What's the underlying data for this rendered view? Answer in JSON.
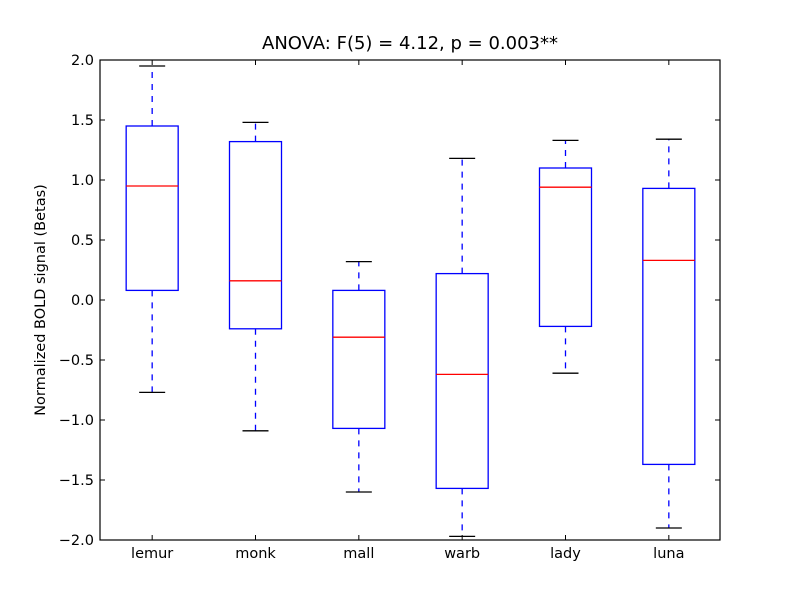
{
  "chart_data": {
    "type": "boxplot",
    "title": "ANOVA: F(5) = 4.12, p = 0.003**",
    "xlabel": "",
    "ylabel": "Normalized BOLD signal (Betas)",
    "ylim": [
      -2.0,
      2.0
    ],
    "yticks": [
      "2.0",
      "1.5",
      "1.0",
      "0.5",
      "0.0",
      "−0.5",
      "−1.0",
      "−1.5",
      "−2.0"
    ],
    "ytick_values": [
      2.0,
      1.5,
      1.0,
      0.5,
      0.0,
      -0.5,
      -1.0,
      -1.5,
      -2.0
    ],
    "grid": false,
    "categories": [
      "lemur",
      "monk",
      "mall",
      "warb",
      "lady",
      "luna"
    ],
    "boxes": [
      {
        "name": "lemur",
        "whisker_high": 1.95,
        "q3": 1.45,
        "median": 0.95,
        "q1": 0.08,
        "whisker_low": -0.77
      },
      {
        "name": "monk",
        "whisker_high": 1.48,
        "q3": 1.32,
        "median": 0.16,
        "q1": -0.24,
        "whisker_low": -1.09
      },
      {
        "name": "mall",
        "whisker_high": 0.32,
        "q3": 0.08,
        "median": -0.31,
        "q1": -1.07,
        "whisker_low": -1.6
      },
      {
        "name": "warb",
        "whisker_high": 1.18,
        "q3": 0.22,
        "median": -0.62,
        "q1": -1.57,
        "whisker_low": -1.97
      },
      {
        "name": "lady",
        "whisker_high": 1.33,
        "q3": 1.1,
        "median": 0.94,
        "q1": -0.22,
        "whisker_low": -0.61
      },
      {
        "name": "luna",
        "whisker_high": 1.34,
        "q3": 0.93,
        "median": 0.33,
        "q1": -1.37,
        "whisker_low": -1.9
      }
    ],
    "colors": {
      "box": "#0000ff",
      "median": "#ff0000",
      "whisker": "#0000ff",
      "cap": "#000000",
      "axes": "#000000"
    }
  }
}
